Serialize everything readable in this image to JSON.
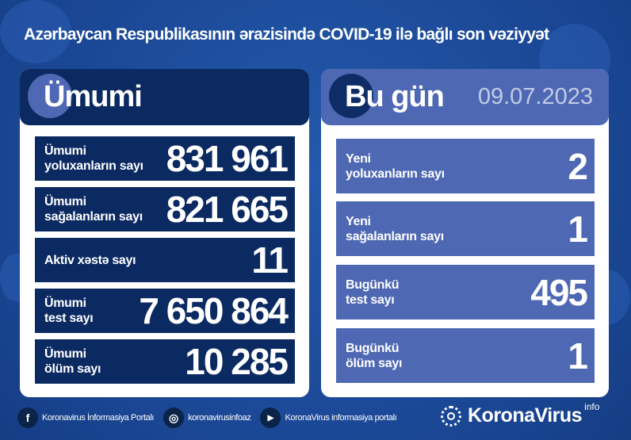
{
  "title": "Azərbaycan Respublikasının ərazisində COVID-19 ilə bağlı son vəziyyət",
  "total": {
    "heading": "Ümumi",
    "rows": [
      {
        "label1": "Ümumi",
        "label2": "yoluxanların sayı",
        "value": "831 961"
      },
      {
        "label1": "Ümumi",
        "label2": "sağalanların sayı",
        "value": "821 665"
      },
      {
        "label1": "Aktiv xəstə sayı",
        "label2": "",
        "value": "11"
      },
      {
        "label1": "Ümumi",
        "label2": "test sayı",
        "value": "7 650 864"
      },
      {
        "label1": "Ümumi",
        "label2": "ölüm sayı",
        "value": "10 285"
      }
    ]
  },
  "today": {
    "heading": "Bu gün",
    "date": "09.07.2023",
    "rows": [
      {
        "label1": "Yeni",
        "label2": "yoluxanların sayı",
        "value": "2"
      },
      {
        "label1": "Yeni",
        "label2": "sağalanların sayı",
        "value": "1"
      },
      {
        "label1": "Bugünkü",
        "label2": "test sayı",
        "value": "495"
      },
      {
        "label1": "Bugünkü",
        "label2": "ölüm sayı",
        "value": "1"
      }
    ]
  },
  "footer": {
    "facebook": "Koronavirus İnformasiya Portalı",
    "instagram": "koronavirusinfoaz",
    "youtube": "KoronaVirus informasiya portalı",
    "logo": "KoronaVirus",
    "logo_sup": "info"
  },
  "colors": {
    "background": "#1d4c9c",
    "navy": "#0b2a62",
    "accent": "#4e68b3"
  }
}
